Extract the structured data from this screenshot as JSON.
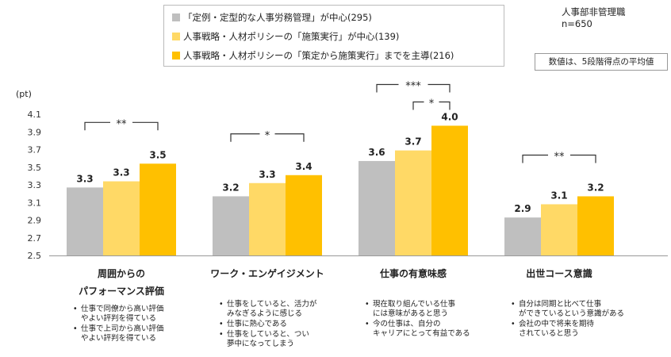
{
  "chart_data": {
    "type": "bar",
    "unit": "(pt)",
    "ylim": [
      2.5,
      4.1
    ],
    "yticks": [
      "4.1",
      "3.9",
      "3.7",
      "3.5",
      "3.3",
      "3.1",
      "2.9",
      "2.7",
      "2.5"
    ],
    "ytick_values": [
      4.1,
      3.9,
      3.7,
      3.5,
      3.3,
      3.1,
      2.9,
      2.7,
      2.5
    ],
    "legend_position": "top-center",
    "series": [
      {
        "name": "「定例・定型的な人事労務管理」が中心(295)",
        "color": "#bfbfbf",
        "values": [
          3.27,
          3.17,
          3.57,
          2.93
        ],
        "labels": [
          "3.3",
          "3.2",
          "3.6",
          "2.9"
        ]
      },
      {
        "name": "人事戦略・人材ポリシーの「施策実行」が中心(139)",
        "color": "#ffd966",
        "values": [
          3.34,
          3.32,
          3.69,
          3.08
        ],
        "labels": [
          "3.3",
          "3.3",
          "3.7",
          "3.1"
        ]
      },
      {
        "name": "人事戦略・人材ポリシーの「策定から施策実行」までを主導(216)",
        "color": "#ffc000",
        "values": [
          3.54,
          3.41,
          3.97,
          3.17
        ],
        "labels": [
          "3.5",
          "3.4",
          "4.0",
          "3.2"
        ]
      }
    ],
    "categories": [
      {
        "title_lines": [
          "周囲からの",
          "パフォーマンス評価"
        ],
        "bullets": [
          "仕事で同僚から高い評価\nやよい評判を得ている",
          "仕事で上司から高い評価\nやよい評判を得ている"
        ]
      },
      {
        "title_lines": [
          "ワーク・エンゲイジメント"
        ],
        "bullets": [
          "仕事をしていると、活力が\nみなぎるように感じる",
          "仕事に熱心である",
          "仕事をしていると、つい\n夢中になってしまう"
        ]
      },
      {
        "title_lines": [
          "仕事の有意味感"
        ],
        "bullets": [
          "現在取り組んでいる仕事\nには意味があると思う",
          "今の仕事は、自分の\nキャリアにとって有益である"
        ]
      },
      {
        "title_lines": [
          "出世コース意識"
        ],
        "bullets": [
          "自分は同期と比べて仕事\nができているという意識がある",
          "会社の中で将来を期待\nされていると思う"
        ]
      }
    ],
    "significance": [
      {
        "category": 0,
        "from": 0,
        "to": 2,
        "label": "**"
      },
      {
        "category": 1,
        "from": 0,
        "to": 2,
        "label": "*"
      },
      {
        "category": 2,
        "from": 0,
        "to": 2,
        "label": "***"
      },
      {
        "category": 2,
        "from": 1,
        "to": 2,
        "label": "*"
      },
      {
        "category": 3,
        "from": 0,
        "to": 2,
        "label": "**"
      }
    ]
  },
  "meta": {
    "respondents": "人事部非管理職",
    "n": "n=650"
  },
  "note": "数値は、5段階得点の平均値"
}
